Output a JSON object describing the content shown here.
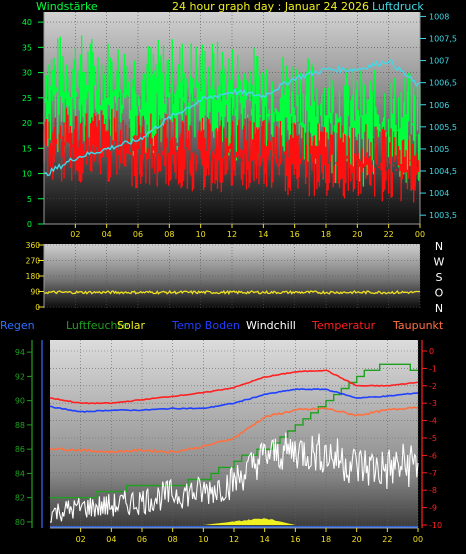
{
  "top": {
    "title": "24 hour graph day : Januar 24 2026",
    "left_label": "Windstärke",
    "right_label": "Luftdruck",
    "left_ticks": [
      "40",
      "35",
      "30",
      "25",
      "20",
      "15",
      "10",
      "5",
      "0"
    ],
    "right_ticks": [
      "1008",
      "1007,5",
      "1007",
      "1006,5",
      "1006",
      "1005,5",
      "1005",
      "1004,5",
      "1004",
      "1003,5"
    ],
    "x_ticks": [
      "02",
      "04",
      "06",
      "08",
      "10",
      "12",
      "14",
      "16",
      "18",
      "20",
      "22",
      "00"
    ]
  },
  "middle": {
    "y_ticks": [
      "360",
      "270",
      "180",
      "90",
      "0"
    ],
    "directions": [
      "N",
      "W",
      "S",
      "O",
      "N"
    ],
    "x_ticks": [
      "02",
      "04",
      "06",
      "08",
      "10",
      "12",
      "14",
      "16",
      "18",
      "20",
      "22",
      "00"
    ]
  },
  "bottom": {
    "legend": [
      "Regen",
      "Luftfeuchte",
      "Solar",
      "Temp Boden",
      "Windchill",
      "Temperatur",
      "Taupunkt"
    ],
    "left_ticks": [
      "94",
      "92",
      "90",
      "88",
      "86",
      "84",
      "82",
      "80"
    ],
    "right_ticks": [
      "0",
      "-1",
      "-2",
      "-3",
      "-4",
      "-5",
      "-6",
      "-7",
      "-8",
      "-9",
      "-10"
    ],
    "x_ticks": [
      "02",
      "04",
      "06",
      "08",
      "10",
      "12",
      "14",
      "16",
      "18",
      "20",
      "22",
      "00"
    ]
  },
  "colors": {
    "wind_gust": "#00ff3c",
    "wind_avg": "#ff1010",
    "pressure": "#40d8e8",
    "direction": "#f0e020",
    "humidity": "#20a020",
    "temp_ground": "#2040ff",
    "windchill": "#ffffff",
    "temperature": "#ff2020",
    "dewpoint": "#ff7040",
    "solar": "#f0f020",
    "rain": "#3070ff"
  },
  "chart_data": [
    {
      "type": "line",
      "title": "24 hour graph day : Januar 24 2026",
      "x": [
        "00",
        "02",
        "04",
        "06",
        "08",
        "10",
        "12",
        "14",
        "16",
        "18",
        "20",
        "22",
        "00"
      ],
      "ylabel": "Windstärke",
      "y2label": "Luftdruck",
      "ylim": [
        0,
        42
      ],
      "y2lim": [
        1003.3,
        1008.1
      ],
      "series": [
        {
          "name": "Windstärke",
          "axis": "left",
          "values": [
            26,
            27,
            26,
            25,
            26,
            26,
            25,
            24,
            23,
            21,
            20,
            19,
            19
          ]
        },
        {
          "name": "Windstärke",
          "axis": "left",
          "values": [
            16,
            16,
            16,
            15,
            15,
            14,
            14,
            14,
            13,
            13,
            13,
            12,
            12
          ]
        },
        {
          "name": "Luftdruck",
          "axis": "right",
          "values": [
            1004.4,
            1004.8,
            1005.0,
            1005.2,
            1005.7,
            1006.1,
            1006.3,
            1006.2,
            1006.6,
            1006.8,
            1006.8,
            1007.0,
            1006.4
          ]
        }
      ]
    },
    {
      "type": "line",
      "x": [
        "00",
        "02",
        "04",
        "06",
        "08",
        "10",
        "12",
        "14",
        "16",
        "18",
        "20",
        "22",
        "00"
      ],
      "ylim": [
        0,
        360
      ],
      "series": [
        {
          "name": "",
          "values": [
            85,
            85,
            85,
            85,
            85,
            85,
            85,
            85,
            85,
            85,
            85,
            85,
            85
          ]
        }
      ]
    },
    {
      "type": "line",
      "x": [
        "00",
        "02",
        "04",
        "06",
        "08",
        "10",
        "12",
        "14",
        "16",
        "18",
        "20",
        "22",
        "00"
      ],
      "ylim": [
        79.5,
        95
      ],
      "y2lim": [
        -10,
        0
      ],
      "series": [
        {
          "name": "Luftfeuchte",
          "axis": "left",
          "values": [
            82,
            82,
            82.5,
            83,
            83,
            83.5,
            85,
            86,
            88,
            90,
            92,
            93,
            92.5
          ]
        },
        {
          "name": "Temp Boden",
          "axis": "right",
          "values": [
            -3.2,
            -3.5,
            -3.4,
            -3.4,
            -3.3,
            -3.3,
            -3.0,
            -2.5,
            -2.2,
            -2.2,
            -2.7,
            -2.6,
            -2.4
          ]
        },
        {
          "name": "Temperatur",
          "axis": "right",
          "values": [
            -2.7,
            -3.0,
            -3.0,
            -2.8,
            -2.6,
            -2.4,
            -2.1,
            -1.5,
            -1.2,
            -1.1,
            -2.0,
            -2.0,
            -1.8
          ]
        },
        {
          "name": "Taupunkt",
          "axis": "right",
          "values": [
            -5.6,
            -5.7,
            -5.8,
            -5.7,
            -5.8,
            -5.5,
            -5.0,
            -3.8,
            -3.4,
            -3.3,
            -3.7,
            -3.4,
            -3.2
          ]
        },
        {
          "name": "Windchill",
          "axis": "right",
          "values": [
            -9.3,
            -9.0,
            -8.9,
            -8.6,
            -8.2,
            -8.1,
            -7.5,
            -6.0,
            -5.7,
            -5.9,
            -6.6,
            -6.8,
            -6.4
          ]
        },
        {
          "name": "Solar",
          "axis": "right",
          "values": [
            -10,
            -10,
            -10,
            -10,
            -10,
            -10,
            -9.8,
            -9.6,
            -10,
            -10,
            -10,
            -10,
            -10
          ]
        },
        {
          "name": "Regen",
          "axis": "left",
          "values": [
            80,
            80,
            80,
            80,
            80,
            80,
            80,
            80,
            80,
            80,
            80,
            80,
            80
          ]
        }
      ]
    }
  ]
}
